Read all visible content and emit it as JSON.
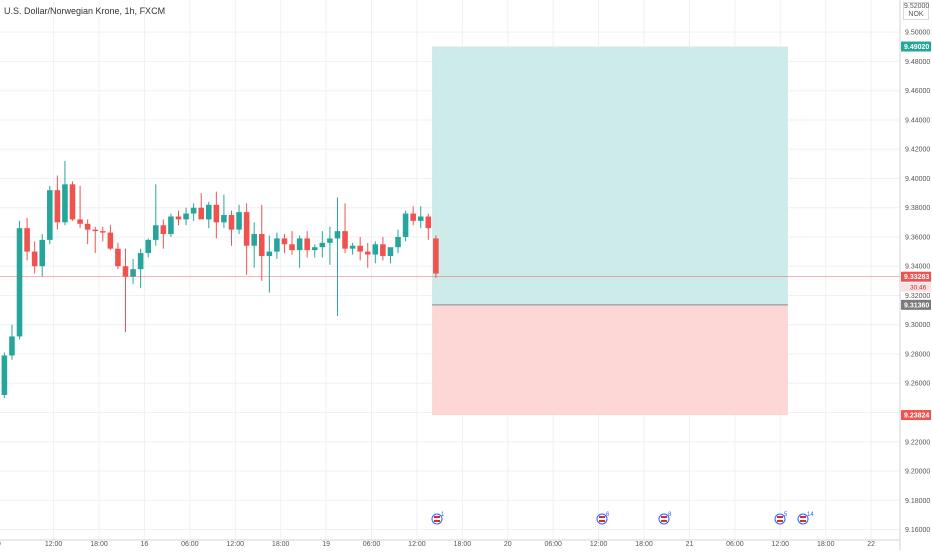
{
  "title": "U.S. Dollar/Norwegian Krone, 1h, FXCM",
  "currency": {
    "top_value": "9.52000",
    "unit": "NOK"
  },
  "colors": {
    "up": "#26a69a",
    "down": "#ef5350",
    "profit_zone": "#cdebe8",
    "loss_zone": "#fdd6d6",
    "entry_tag": "#7a7a7a",
    "countdown_bg": "#fce2e2"
  },
  "events": [
    {
      "icon": "us-flag-icon",
      "count": "1",
      "x_label": "around 12:00 (day 19)"
    },
    {
      "icon": "us-flag-icon",
      "count": "6",
      "x_label": "12:00 (day 20)"
    },
    {
      "icon": "us-flag-icon",
      "count": "8",
      "x_label": "18:00 (day 20)"
    },
    {
      "icon": "us-flag-icon",
      "count": "5",
      "x_label": "around 12:00 (day 21)"
    },
    {
      "icon": "us-flag-icon",
      "count": "14",
      "x_label": "around 12:00 (day 21)"
    }
  ],
  "chart_data": {
    "type": "candlestick",
    "symbol": "USDNOK",
    "interval": "1h",
    "ylim": [
      9.146,
      9.522
    ],
    "y_ticks": [
      "9.50000",
      "9.48000",
      "9.46000",
      "9.44000",
      "9.42000",
      "9.40000",
      "9.38000",
      "9.36000",
      "9.34000",
      "9.32000",
      "9.30000",
      "9.28000",
      "9.26000",
      "9.24000",
      "9.22000",
      "9.20000",
      "9.18000",
      "9.16000"
    ],
    "x_ticks": [
      {
        "label": "00",
        "bar": -0.5
      },
      {
        "label": "12:00",
        "bar": 7
      },
      {
        "label": "18:00",
        "bar": 13
      },
      {
        "label": "16",
        "bar": 19
      },
      {
        "label": "06:00",
        "bar": 25
      },
      {
        "label": "12:00",
        "bar": 31
      },
      {
        "label": "18:00",
        "bar": 37
      },
      {
        "label": "19",
        "bar": 43
      },
      {
        "label": "06:00",
        "bar": 49
      },
      {
        "label": "12:00",
        "bar": 55
      },
      {
        "label": "18:00",
        "bar": 61
      },
      {
        "label": "20",
        "bar": 67
      },
      {
        "label": "06:00",
        "bar": 73
      },
      {
        "label": "12:00",
        "bar": 79
      },
      {
        "label": "18:00",
        "bar": 85
      },
      {
        "label": "21",
        "bar": 91
      },
      {
        "label": "06:00",
        "bar": 97
      },
      {
        "label": "12:00",
        "bar": 103
      },
      {
        "label": "18:00",
        "bar": 109
      },
      {
        "label": "22",
        "bar": 115
      },
      {
        "label": "",
        "bar": 121
      }
    ],
    "candles": [
      {
        "o": 9.252,
        "h": 9.281,
        "l": 9.25,
        "c": 9.279
      },
      {
        "o": 9.279,
        "h": 9.3,
        "l": 9.276,
        "c": 9.292
      },
      {
        "o": 9.292,
        "h": 9.371,
        "l": 9.29,
        "c": 9.366
      },
      {
        "o": 9.366,
        "h": 9.373,
        "l": 9.344,
        "c": 9.35
      },
      {
        "o": 9.35,
        "h": 9.357,
        "l": 9.335,
        "c": 9.34
      },
      {
        "o": 9.34,
        "h": 9.362,
        "l": 9.333,
        "c": 9.358
      },
      {
        "o": 9.358,
        "h": 9.395,
        "l": 9.355,
        "c": 9.392
      },
      {
        "o": 9.392,
        "h": 9.402,
        "l": 9.365,
        "c": 9.37
      },
      {
        "o": 9.37,
        "h": 9.412,
        "l": 9.368,
        "c": 9.396
      },
      {
        "o": 9.396,
        "h": 9.398,
        "l": 9.371,
        "c": 9.372
      },
      {
        "o": 9.372,
        "h": 9.395,
        "l": 9.366,
        "c": 9.369
      },
      {
        "o": 9.369,
        "h": 9.372,
        "l": 9.355,
        "c": 9.365
      },
      {
        "o": 9.365,
        "h": 9.367,
        "l": 9.349,
        "c": 9.364
      },
      {
        "o": 9.364,
        "h": 9.367,
        "l": 9.357,
        "c": 9.363
      },
      {
        "o": 9.363,
        "h": 9.368,
        "l": 9.351,
        "c": 9.352
      },
      {
        "o": 9.352,
        "h": 9.356,
        "l": 9.338,
        "c": 9.34
      },
      {
        "o": 9.34,
        "h": 9.352,
        "l": 9.295,
        "c": 9.333
      },
      {
        "o": 9.333,
        "h": 9.345,
        "l": 9.328,
        "c": 9.338
      },
      {
        "o": 9.338,
        "h": 9.352,
        "l": 9.325,
        "c": 9.349
      },
      {
        "o": 9.349,
        "h": 9.359,
        "l": 9.346,
        "c": 9.358
      },
      {
        "o": 9.358,
        "h": 9.396,
        "l": 9.354,
        "c": 9.368
      },
      {
        "o": 9.368,
        "h": 9.372,
        "l": 9.352,
        "c": 9.362
      },
      {
        "o": 9.362,
        "h": 9.376,
        "l": 9.36,
        "c": 9.374
      },
      {
        "o": 9.374,
        "h": 9.378,
        "l": 9.368,
        "c": 9.372
      },
      {
        "o": 9.372,
        "h": 9.38,
        "l": 9.368,
        "c": 9.376
      },
      {
        "o": 9.376,
        "h": 9.383,
        "l": 9.371,
        "c": 9.38
      },
      {
        "o": 9.38,
        "h": 9.39,
        "l": 9.374,
        "c": 9.372
      },
      {
        "o": 9.372,
        "h": 9.384,
        "l": 9.366,
        "c": 9.382
      },
      {
        "o": 9.382,
        "h": 9.391,
        "l": 9.359,
        "c": 9.37
      },
      {
        "o": 9.37,
        "h": 9.389,
        "l": 9.366,
        "c": 9.375
      },
      {
        "o": 9.375,
        "h": 9.378,
        "l": 9.354,
        "c": 9.365
      },
      {
        "o": 9.365,
        "h": 9.382,
        "l": 9.362,
        "c": 9.377
      },
      {
        "o": 9.377,
        "h": 9.383,
        "l": 9.334,
        "c": 9.354
      },
      {
        "o": 9.354,
        "h": 9.37,
        "l": 9.339,
        "c": 9.362
      },
      {
        "o": 9.362,
        "h": 9.382,
        "l": 9.33,
        "c": 9.347
      },
      {
        "o": 9.347,
        "h": 9.361,
        "l": 9.322,
        "c": 9.35
      },
      {
        "o": 9.35,
        "h": 9.363,
        "l": 9.345,
        "c": 9.359
      },
      {
        "o": 9.359,
        "h": 9.362,
        "l": 9.349,
        "c": 9.355
      },
      {
        "o": 9.355,
        "h": 9.364,
        "l": 9.348,
        "c": 9.351
      },
      {
        "o": 9.351,
        "h": 9.361,
        "l": 9.339,
        "c": 9.359
      },
      {
        "o": 9.359,
        "h": 9.364,
        "l": 9.346,
        "c": 9.351
      },
      {
        "o": 9.351,
        "h": 9.355,
        "l": 9.346,
        "c": 9.353
      },
      {
        "o": 9.353,
        "h": 9.364,
        "l": 9.346,
        "c": 9.356
      },
      {
        "o": 9.356,
        "h": 9.367,
        "l": 9.341,
        "c": 9.359
      },
      {
        "o": 9.359,
        "h": 9.387,
        "l": 9.306,
        "c": 9.364
      },
      {
        "o": 9.364,
        "h": 9.383,
        "l": 9.349,
        "c": 9.352
      },
      {
        "o": 9.352,
        "h": 9.356,
        "l": 9.348,
        "c": 9.354
      },
      {
        "o": 9.354,
        "h": 9.36,
        "l": 9.344,
        "c": 9.35
      },
      {
        "o": 9.35,
        "h": 9.356,
        "l": 9.339,
        "c": 9.348
      },
      {
        "o": 9.348,
        "h": 9.357,
        "l": 9.342,
        "c": 9.355
      },
      {
        "o": 9.355,
        "h": 9.36,
        "l": 9.344,
        "c": 9.347
      },
      {
        "o": 9.347,
        "h": 9.352,
        "l": 9.342,
        "c": 9.353
      },
      {
        "o": 9.353,
        "h": 9.365,
        "l": 9.349,
        "c": 9.36
      },
      {
        "o": 9.36,
        "h": 9.378,
        "l": 9.357,
        "c": 9.376
      },
      {
        "o": 9.376,
        "h": 9.381,
        "l": 9.368,
        "c": 9.371
      },
      {
        "o": 9.371,
        "h": 9.381,
        "l": 9.366,
        "c": 9.374
      },
      {
        "o": 9.374,
        "h": 9.376,
        "l": 9.358,
        "c": 9.366
      },
      {
        "o": 9.359,
        "h": 9.361,
        "l": 9.332,
        "c": 9.335
      }
    ],
    "current_price": {
      "value": "9.33283",
      "countdown": "30:46"
    },
    "position": {
      "type": "long",
      "entry": "9.31360",
      "target": "9.49020",
      "stop": "9.23824",
      "start_bar": 57,
      "end_bar": 104
    }
  }
}
